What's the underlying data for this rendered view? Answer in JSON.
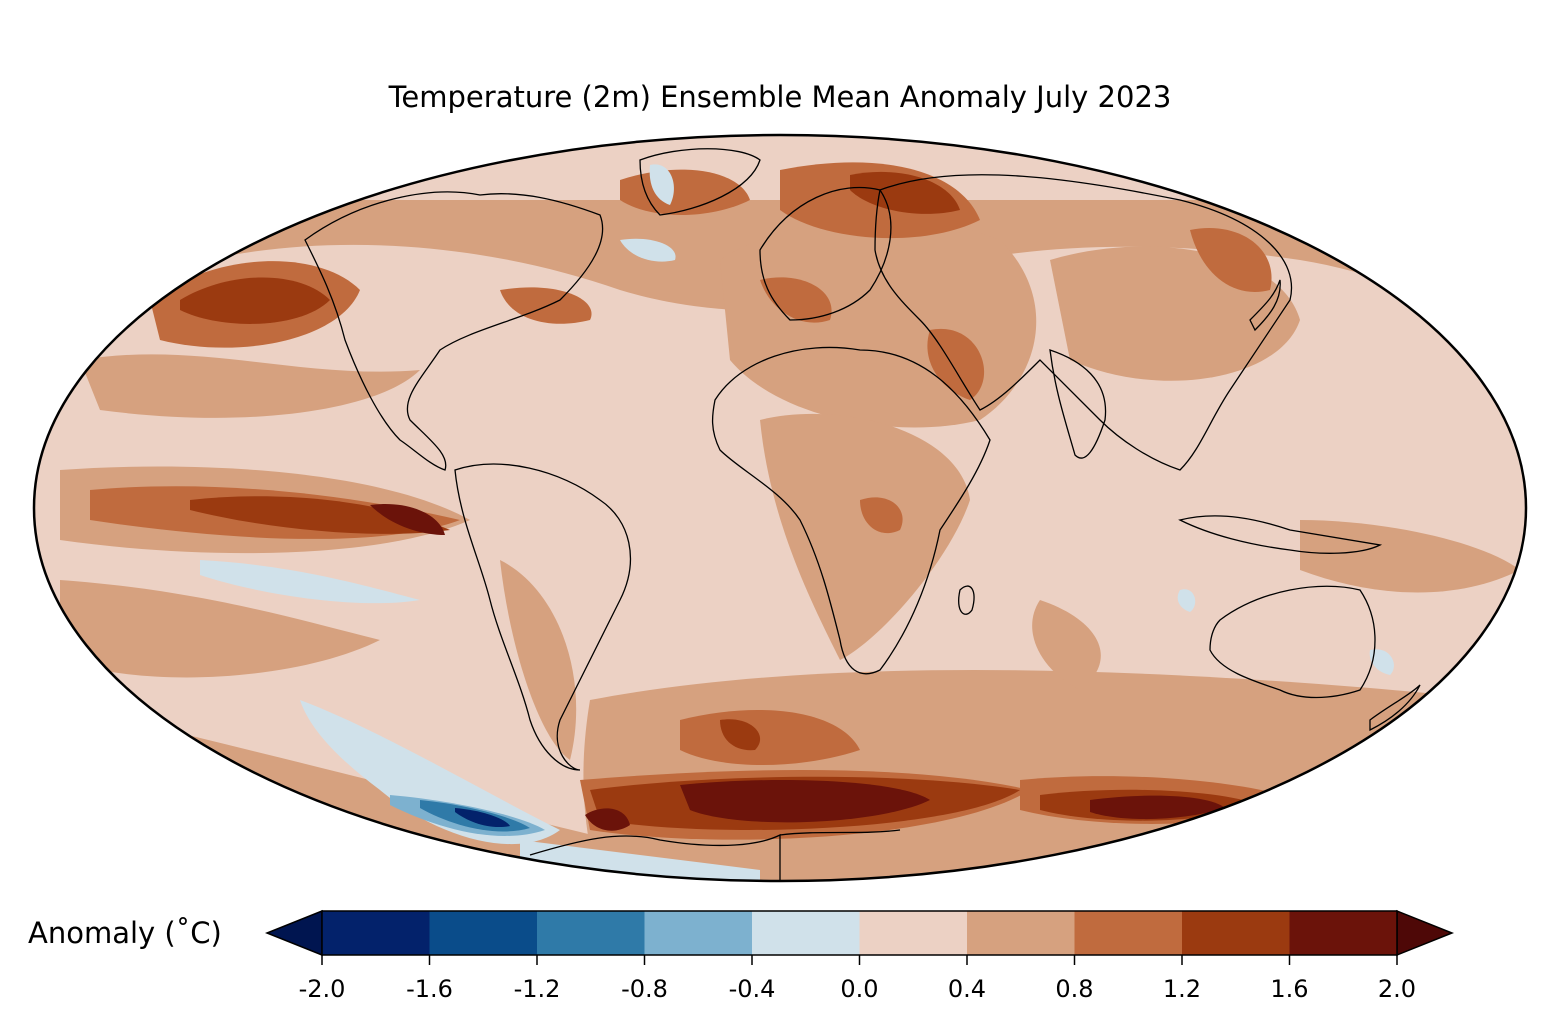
{
  "title": "Temperature (2m) Ensemble Mean Anomaly July 2023",
  "colorbar": {
    "label": "Anomaly (˚C)",
    "ticks": [
      "-2.0",
      "-1.6",
      "-1.2",
      "-0.8",
      "-0.4",
      "0.0",
      "0.4",
      "0.8",
      "1.2",
      "1.6",
      "2.0"
    ],
    "under_color": "#001550",
    "over_color": "#4e0807",
    "colors": [
      "#03226b",
      "#0a4c8a",
      "#2f7aa8",
      "#7db1cf",
      "#d0e1ea",
      "#ecd1c4",
      "#d6a17f",
      "#c06b3e",
      "#9b3a10",
      "#6b130a"
    ]
  },
  "colors": {
    "ocean_base": "#ecd1c4",
    "warm_1": "#d6a17f",
    "warm_2": "#c06b3e",
    "warm_3": "#9b3a10",
    "warm_4": "#6b130a",
    "cool_1": "#d0e1ea",
    "cool_2": "#7db1cf",
    "cool_3": "#2f7aa8",
    "cool_4": "#03226b"
  }
}
